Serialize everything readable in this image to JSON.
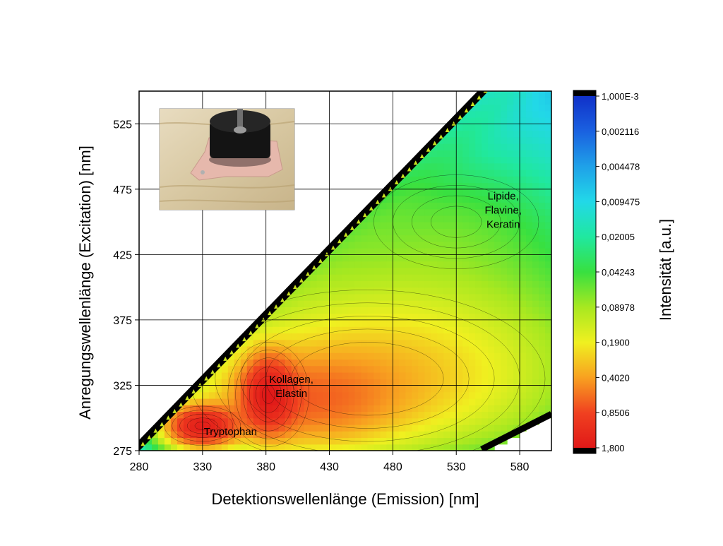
{
  "chart_data": {
    "type": "heatmap",
    "subtype": "excitation-emission contour map",
    "xlabel": "Detektionswellenlänge (Emission) [nm]",
    "ylabel": "Anregungswellenlänge (Excitation) [nm]",
    "colorbar_label": "Intensität [a.u.]",
    "xlim": [
      280,
      605
    ],
    "ylim": [
      275,
      550
    ],
    "xticks": [
      "280",
      "330",
      "380",
      "430",
      "480",
      "530",
      "580"
    ],
    "yticks": [
      "275",
      "325",
      "375",
      "425",
      "475",
      "525"
    ],
    "grid": true,
    "colorbar_scale": "log",
    "colorbar_ticks": [
      "1,000E-3",
      "0,002116",
      "0,004478",
      "0,009475",
      "0,02005",
      "0,04243",
      "0,08978",
      "0,1900",
      "0,4020",
      "0,8506",
      "1,800"
    ],
    "colorbar_colors": [
      "#1030c8",
      "#1a60e0",
      "#1fa0e8",
      "#22d8e8",
      "#20e8a0",
      "#38e040",
      "#a8e820",
      "#f0f020",
      "#f8a020",
      "#f04020",
      "#e01818"
    ],
    "peaks": [
      {
        "label": "Tryptophan",
        "emission": 330,
        "excitation": 294,
        "intensity": 1.5
      },
      {
        "label": "Kollagen, Elastin",
        "emission": 382,
        "excitation": 318,
        "intensity": 1.3
      },
      {
        "label": "Lipide, Flavine, Keratin",
        "emission": 530,
        "excitation": 450,
        "intensity": 0.015
      }
    ],
    "annotations": [
      {
        "lines": [
          "Tryptophan"
        ],
        "emission": 352,
        "excitation": 287
      },
      {
        "lines": [
          "Kollagen,",
          "Elastin"
        ],
        "emission": 400,
        "excitation": 327
      },
      {
        "lines": [
          "Lipide,",
          "Flavine,",
          "Keratin"
        ],
        "emission": 567,
        "excitation": 467
      }
    ],
    "inset_photo": "photo of a black cylindrical probe resting on a piece of skin on a wooden surface"
  }
}
